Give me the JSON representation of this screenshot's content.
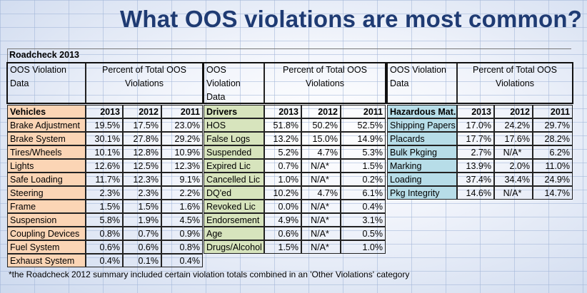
{
  "title": "What OOS violations are most common?",
  "caption": "Roadcheck 2013",
  "groups": [
    {
      "header_left": [
        "OOS Violation",
        "Data"
      ],
      "header_right": [
        "Percent of Total OOS",
        "Violations"
      ],
      "category": "Vehicles",
      "years": [
        "2013",
        "2012",
        "2011"
      ],
      "rows": [
        {
          "label": "Brake Adjustment",
          "v2013": "19.5%",
          "v2012": "17.5%",
          "v2011": "23.0%"
        },
        {
          "label": "Brake System",
          "v2013": "30.1%",
          "v2012": "27.8%",
          "v2011": "29.2%"
        },
        {
          "label": "Tires/Wheels",
          "v2013": "10.1%",
          "v2012": "12.8%",
          "v2011": "10.9%"
        },
        {
          "label": "Lights",
          "v2013": "12.6%",
          "v2012": "12.5%",
          "v2011": "12.3%"
        },
        {
          "label": "Safe Loading",
          "v2013": "11.7%",
          "v2012": "12.3%",
          "v2011": "9.1%"
        },
        {
          "label": "Steering",
          "v2013": "2.3%",
          "v2012": "2.3%",
          "v2011": "2.2%"
        },
        {
          "label": "Frame",
          "v2013": "1.5%",
          "v2012": "1.5%",
          "v2011": "1.6%"
        },
        {
          "label": "Suspension",
          "v2013": "5.8%",
          "v2012": "1.9%",
          "v2011": "4.5%"
        },
        {
          "label": "Coupling Devices",
          "v2013": "0.8%",
          "v2012": "0.7%",
          "v2011": "0.9%"
        },
        {
          "label": "Fuel System",
          "v2013": "0.6%",
          "v2012": "0.6%",
          "v2011": "0.8%"
        },
        {
          "label": "Exhaust System",
          "v2013": "0.4%",
          "v2012": "0.1%",
          "v2011": "0.4%"
        }
      ]
    },
    {
      "header_left": [
        "OOS",
        "Violation",
        "Data"
      ],
      "header_right": [
        "Percent of Total OOS",
        "Violations"
      ],
      "category": "Drivers",
      "years": [
        "2013",
        "2012",
        "2011"
      ],
      "rows": [
        {
          "label": "HOS",
          "v2013": "51.8%",
          "v2012": "50.2%",
          "v2011": "52.5%"
        },
        {
          "label": "False Logs",
          "v2013": "13.2%",
          "v2012": "15.0%",
          "v2011": "14.9%"
        },
        {
          "label": "Suspended",
          "v2013": "5.2%",
          "v2012": "4.7%",
          "v2011": "5.3%"
        },
        {
          "label": "Expired Lic",
          "v2013": "0.7%",
          "v2012": "N/A*",
          "v2011": "1.5%"
        },
        {
          "label": "Cancelled Lic",
          "v2013": "1.0%",
          "v2012": "N/A*",
          "v2011": "0.2%"
        },
        {
          "label": "DQ'ed",
          "v2013": "10.2%",
          "v2012": "4.7%",
          "v2011": "6.1%"
        },
        {
          "label": "Revoked Lic",
          "v2013": "0.0%",
          "v2012": "N/A*",
          "v2011": "0.4%"
        },
        {
          "label": "Endorsement",
          "v2013": "4.9%",
          "v2012": "N/A*",
          "v2011": "3.1%"
        },
        {
          "label": "Age",
          "v2013": "0.6%",
          "v2012": "N/A*",
          "v2011": "0.5%"
        },
        {
          "label": "Drugs/Alcohol",
          "v2013": "1.5%",
          "v2012": "N/A*",
          "v2011": "1.0%"
        }
      ]
    },
    {
      "header_left": [
        "OOS Violation",
        "Data"
      ],
      "header_right": [
        "Percent of Total OOS",
        "Violations"
      ],
      "category": "Hazardous Mat.",
      "years": [
        "2013",
        "2012",
        "2011"
      ],
      "rows": [
        {
          "label": "Shipping Papers",
          "v2013": "17.0%",
          "v2012": "24.2%",
          "v2011": "29.7%"
        },
        {
          "label": "Placards",
          "v2013": "17.7%",
          "v2012": "17.6%",
          "v2011": "28.2%"
        },
        {
          "label": "Bulk Pkging",
          "v2013": "2.7%",
          "v2012": "N/A*",
          "v2011": "6.2%"
        },
        {
          "label": "Marking",
          "v2013": "13.9%",
          "v2012": "2.0%",
          "v2011": "11.0%"
        },
        {
          "label": "Loading",
          "v2013": "37.4%",
          "v2012": "34.4%",
          "v2011": "24.9%"
        },
        {
          "label": "Pkg Integrity",
          "v2013": "14.6%",
          "v2012": "N/A*",
          "v2011": "14.7%"
        }
      ]
    }
  ],
  "footnote": "*the Roadcheck 2012 summary included certain violation totals combined in an 'Other Violations' category"
}
